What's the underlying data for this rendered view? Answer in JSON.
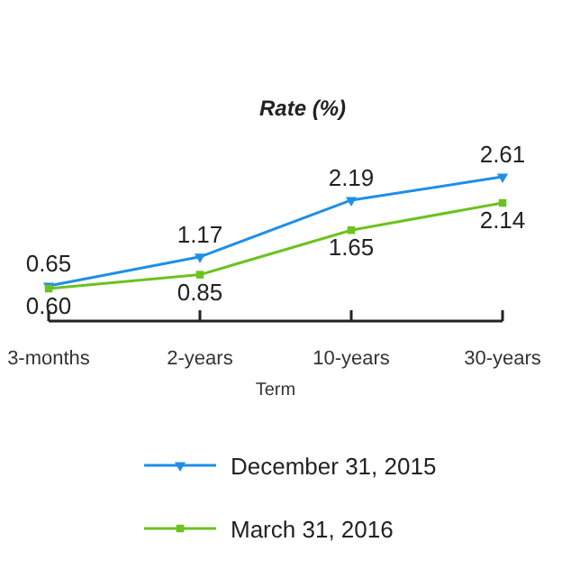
{
  "chart_data": {
    "type": "line",
    "title": "Rate (%)",
    "xlabel": "Term",
    "categories": [
      "3-months",
      "2-years",
      "10-years",
      "30-years"
    ],
    "series": [
      {
        "name": "December 31, 2015",
        "color": "#1e8fe6",
        "values": [
          0.65,
          1.17,
          2.19,
          2.61
        ],
        "value_labels": [
          "0.65",
          "1.17",
          "2.19",
          "2.61"
        ],
        "marker": "triangle"
      },
      {
        "name": "March 31, 2016",
        "color": "#6cc21f",
        "values": [
          0.6,
          0.85,
          1.65,
          2.14
        ],
        "value_labels": [
          "0.60",
          "0.85",
          "1.65",
          "2.14"
        ],
        "marker": "square"
      }
    ],
    "legend": "bottom",
    "grid": false
  }
}
